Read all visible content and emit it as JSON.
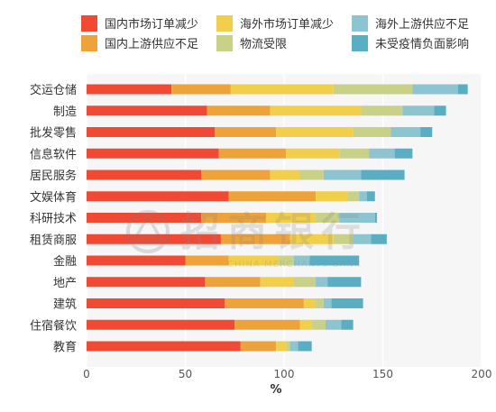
{
  "chart_data": {
    "type": "bar",
    "orientation": "horizontal",
    "stacked": true,
    "xlabel": "%",
    "xlim": [
      0,
      200
    ],
    "xticks": [
      0,
      50,
      100,
      150,
      200
    ],
    "grid": true,
    "legend_position": "top",
    "categories": [
      "交运仓储",
      "制造",
      "批发零售",
      "信息软件",
      "居民服务",
      "文娱体育",
      "科研技术",
      "租赁商服",
      "金融",
      "地产",
      "建筑",
      "住宿餐饮",
      "教育"
    ],
    "series": [
      {
        "name": "国内市场订单减少",
        "color": "#f04a34",
        "values": [
          43,
          61,
          65,
          67,
          58,
          72,
          58,
          68,
          50,
          60,
          70,
          75,
          78
        ]
      },
      {
        "name": "国内上游供应不足",
        "color": "#eea33a",
        "values": [
          30,
          32,
          31,
          34,
          35,
          44,
          33,
          35,
          22,
          28,
          40,
          33,
          18
        ]
      },
      {
        "name": "海外市场订单减少",
        "color": "#f1cf4a",
        "values": [
          52,
          46,
          39,
          27,
          15,
          16,
          25,
          22,
          25,
          17,
          6,
          6,
          5
        ]
      },
      {
        "name": "物流受限",
        "color": "#c9d189",
        "values": [
          40,
          21,
          19,
          15,
          12,
          6,
          12,
          10,
          8,
          11,
          4,
          7,
          2
        ]
      },
      {
        "name": "海外上游供应不足",
        "color": "#8cc4d0",
        "values": [
          23,
          16,
          15,
          13,
          19,
          4,
          18,
          9,
          8,
          6,
          4,
          8,
          4
        ]
      },
      {
        "name": "未受疫情负面影响",
        "color": "#5aaec3",
        "values": [
          5,
          6,
          6,
          9,
          22,
          4,
          1,
          8,
          25,
          17,
          16,
          6,
          7
        ]
      }
    ],
    "watermark": {
      "main": "招商银行",
      "sub": "CHINA MERCHANTS BANK"
    }
  }
}
